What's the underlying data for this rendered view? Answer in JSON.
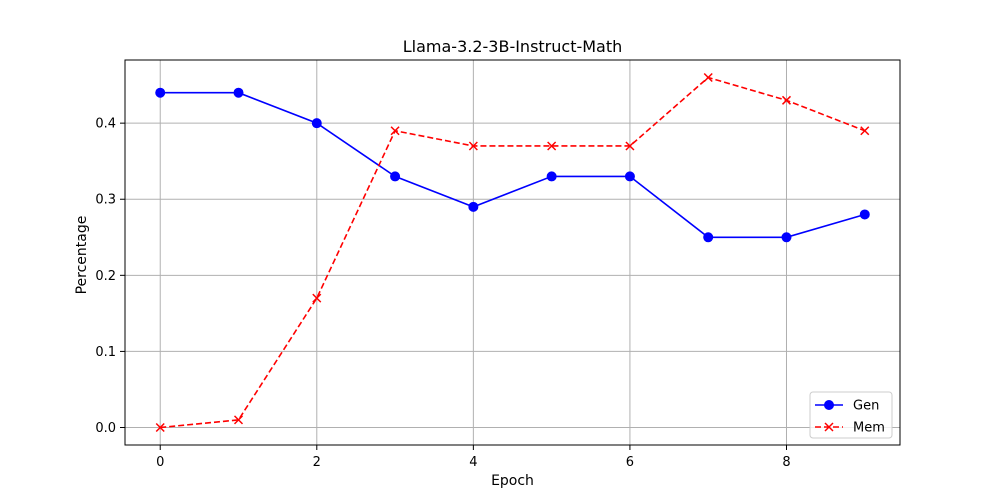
{
  "chart_data": {
    "type": "line",
    "title": "Llama-3.2-3B-Instruct-Math",
    "xlabel": "Epoch",
    "ylabel": "Percentage",
    "x": [
      0,
      1,
      2,
      3,
      4,
      5,
      6,
      7,
      8,
      9
    ],
    "xlim": [
      -0.45,
      9.45
    ],
    "ylim": [
      -0.023,
      0.483
    ],
    "xticks": [
      0,
      2,
      4,
      6,
      8
    ],
    "yticks": [
      0.0,
      0.1,
      0.2,
      0.3,
      0.4
    ],
    "xtick_labels": [
      "0",
      "2",
      "4",
      "6",
      "8"
    ],
    "ytick_labels": [
      "0.0",
      "0.1",
      "0.2",
      "0.3",
      "0.4"
    ],
    "grid": true,
    "legend_position": "lower-right",
    "series": [
      {
        "name": "Gen",
        "color": "#0000ff",
        "line_style": "solid",
        "marker": "circle",
        "values": [
          0.44,
          0.44,
          0.4,
          0.33,
          0.29,
          0.33,
          0.33,
          0.25,
          0.25,
          0.28
        ]
      },
      {
        "name": "Mem",
        "color": "#ff0000",
        "line_style": "dashed",
        "marker": "x",
        "values": [
          0.0,
          0.01,
          0.17,
          0.39,
          0.37,
          0.37,
          0.37,
          0.46,
          0.43,
          0.39
        ]
      }
    ]
  }
}
